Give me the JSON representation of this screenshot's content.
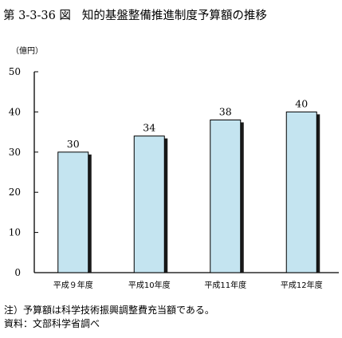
{
  "figure": {
    "number": "第 3-3-36 図",
    "title": "知的基盤整備推進制度予算額の推移"
  },
  "chart_data": {
    "type": "bar",
    "unit": "（億円）",
    "categories": [
      "平成９年度",
      "平成10年度",
      "平成11年度",
      "平成12年度"
    ],
    "values": [
      30,
      34,
      38,
      40
    ],
    "data_labels": [
      "30",
      "34",
      "38",
      "40"
    ],
    "ylim": [
      0,
      50
    ],
    "yticks": [
      "0",
      "10",
      "20",
      "30",
      "40",
      "50"
    ],
    "bar_color": "#c4e4f0",
    "bar_shadow_color": "#1a1a1a",
    "grid": false
  },
  "notes": {
    "note": "注）予算額は科学技術振興調整費充当額である。",
    "source": "資料：文部科学省調べ"
  }
}
